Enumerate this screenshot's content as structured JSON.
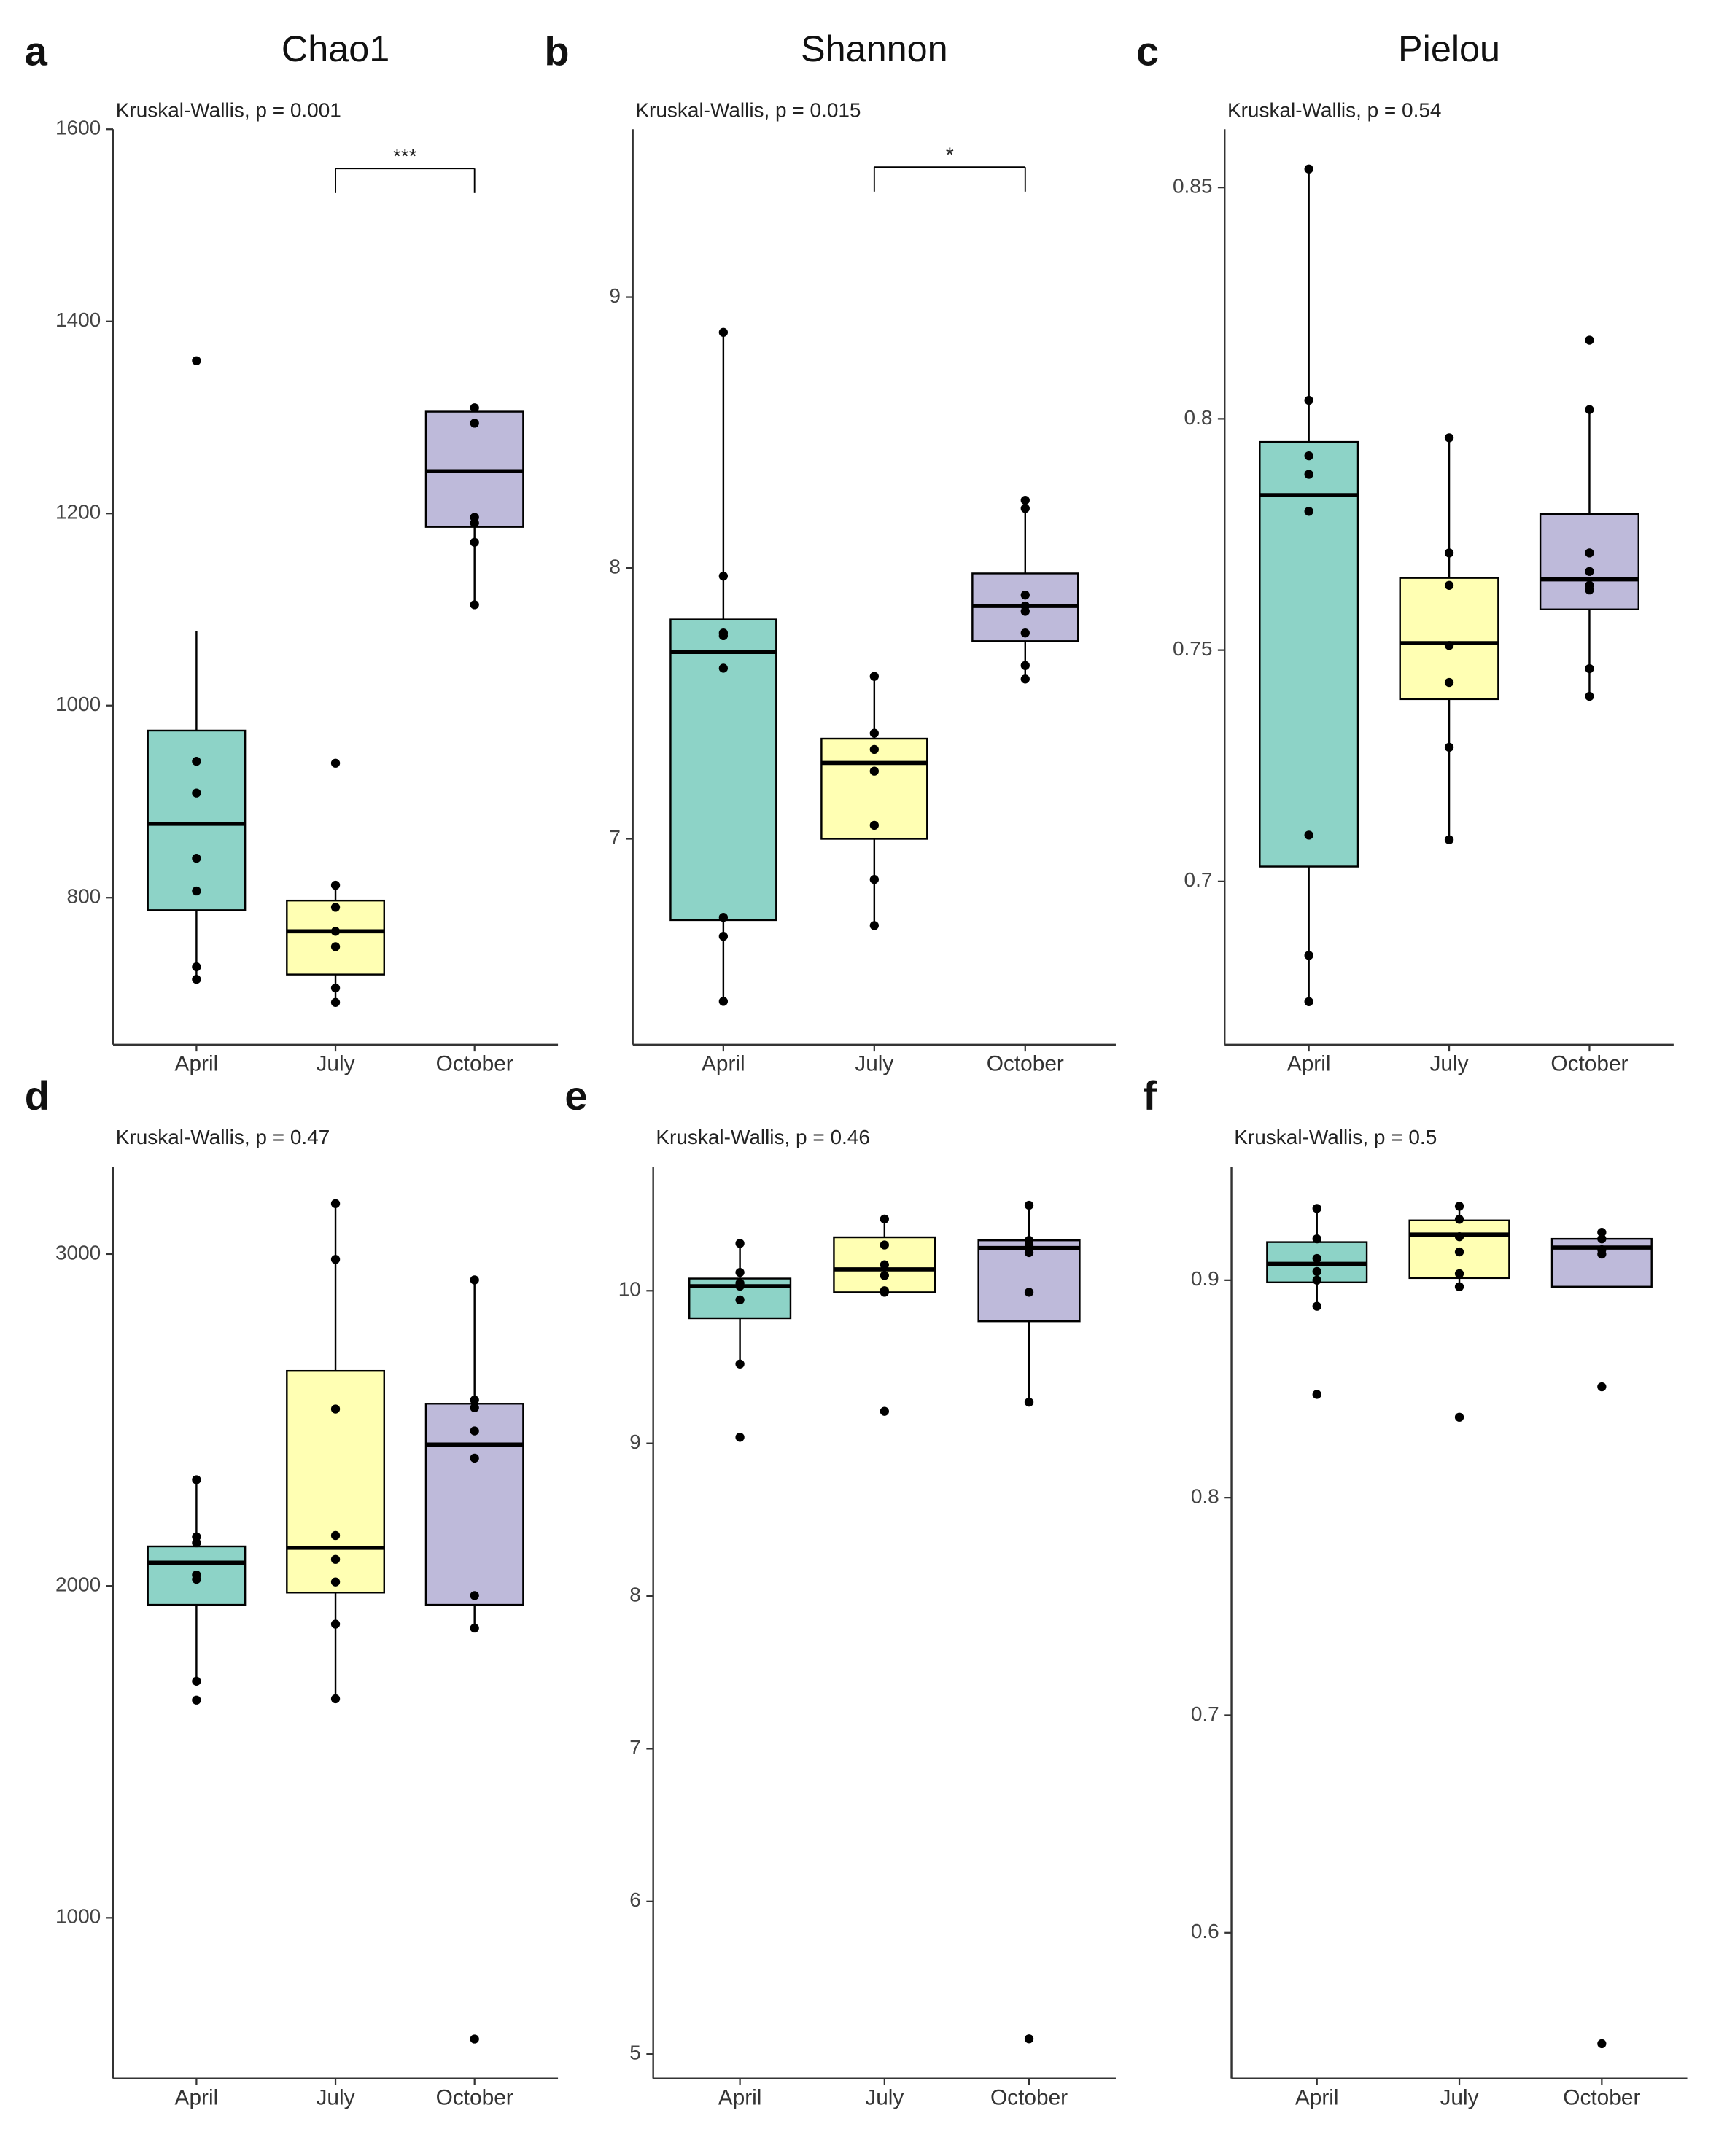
{
  "chart_data": [
    {
      "type": "box",
      "panel_label": "a",
      "title": "Chao1",
      "annotation": "Kruskal-Wallis, p = 0.001",
      "categories": [
        "April",
        "July",
        "October"
      ],
      "colors": [
        "#8dd3c7",
        "#ffffb3",
        "#bebada"
      ],
      "ylim": [
        647,
        1600
      ],
      "yticks": [
        800,
        1000,
        1200,
        1400,
        1600
      ],
      "boxes": [
        {
          "whisker_low": 715,
          "q1": 787,
          "median": 877,
          "q3": 974,
          "whisker_high": 1078,
          "points": [
            1359,
            942,
            909,
            841,
            807,
            728,
            715
          ]
        },
        {
          "whisker_low": 691,
          "q1": 720,
          "median": 765,
          "q3": 797,
          "whisker_high": 813,
          "points": [
            940,
            813,
            790,
            765,
            749,
            706,
            691
          ]
        },
        {
          "whisker_low": 1105,
          "q1": 1186,
          "median": 1244,
          "q3": 1306,
          "whisker_high": 1311,
          "points": [
            1310,
            1294,
            1196,
            1190,
            1170,
            1105
          ]
        }
      ],
      "significance": {
        "between": [
          "July",
          "October"
        ],
        "label": "***",
        "y": 1559
      }
    },
    {
      "type": "box",
      "panel_label": "b",
      "title": "Shannon",
      "annotation": "Kruskal-Wallis, p = 0.015",
      "categories": [
        "April",
        "July",
        "October"
      ],
      "colors": [
        "#8dd3c7",
        "#ffffb3",
        "#bebada"
      ],
      "ylim": [
        6.24,
        9.62
      ],
      "yticks": [
        7,
        8,
        9
      ],
      "boxes": [
        {
          "whisker_low": 6.4,
          "q1": 6.7,
          "median": 7.69,
          "q3": 7.81,
          "whisker_high": 8.87,
          "points": [
            8.87,
            7.97,
            7.76,
            7.75,
            7.63,
            6.71,
            6.64,
            6.4
          ]
        },
        {
          "whisker_low": 6.68,
          "q1": 7.0,
          "median": 7.28,
          "q3": 7.37,
          "whisker_high": 7.6,
          "points": [
            7.6,
            7.39,
            7.33,
            7.25,
            7.05,
            6.85,
            6.68
          ]
        },
        {
          "whisker_low": 7.59,
          "q1": 7.73,
          "median": 7.86,
          "q3": 7.98,
          "whisker_high": 8.26,
          "points": [
            8.25,
            8.22,
            7.9,
            7.86,
            7.84,
            7.76,
            7.64,
            7.59
          ]
        }
      ],
      "significance": {
        "between": [
          "July",
          "October"
        ],
        "label": "*",
        "y": 9.48
      }
    },
    {
      "type": "box",
      "panel_label": "c",
      "title": "Pielou",
      "annotation": "Kruskal-Wallis, p = 0.54",
      "categories": [
        "April",
        "July",
        "October"
      ],
      "colors": [
        "#8dd3c7",
        "#ffffb3",
        "#bebada"
      ],
      "ylim": [
        0.6647,
        0.8626
      ],
      "yticks": [
        0.7,
        0.75,
        0.8,
        0.85
      ],
      "boxes": [
        {
          "whisker_low": 0.6738,
          "q1": 0.7032,
          "median": 0.7835,
          "q3": 0.795,
          "whisker_high": 0.854,
          "points": [
            0.854,
            0.804,
            0.792,
            0.788,
            0.78,
            0.71,
            0.684,
            0.674
          ]
        },
        {
          "whisker_low": 0.7088,
          "q1": 0.7394,
          "median": 0.7515,
          "q3": 0.7656,
          "whisker_high": 0.7959,
          "points": [
            0.7959,
            0.771,
            0.764,
            0.751,
            0.743,
            0.729,
            0.709
          ]
        },
        {
          "whisker_low": 0.7397,
          "q1": 0.7588,
          "median": 0.7653,
          "q3": 0.7794,
          "whisker_high": 0.802,
          "points": [
            0.817,
            0.802,
            0.771,
            0.767,
            0.764,
            0.763,
            0.746,
            0.74
          ]
        }
      ]
    },
    {
      "type": "box",
      "panel_label": "d",
      "annotation": "Kruskal-Wallis, p = 0.47",
      "categories": [
        "April",
        "July",
        "October"
      ],
      "colors": [
        "#8dd3c7",
        "#ffffb3",
        "#bebada"
      ],
      "ylim": [
        516,
        3262
      ],
      "yticks": [
        1000,
        2000,
        3000
      ],
      "boxes": [
        {
          "whisker_low": 1713,
          "q1": 1943,
          "median": 2070,
          "q3": 2119,
          "whisker_high": 2320,
          "points": [
            2320,
            2148,
            2130,
            2033,
            2020,
            1713,
            1656
          ]
        },
        {
          "whisker_low": 1660,
          "q1": 1980,
          "median": 2115,
          "q3": 2648,
          "whisker_high": 3152,
          "points": [
            3152,
            2984,
            2533,
            2152,
            2080,
            2012,
            1885,
            1660
          ]
        },
        {
          "whisker_low": 1873,
          "q1": 1943,
          "median": 2426,
          "q3": 2549,
          "whisker_high": 2922,
          "points": [
            2922,
            2560,
            2537,
            2467,
            2385,
            1971,
            1873,
            635
          ]
        }
      ]
    },
    {
      "type": "box",
      "panel_label": "e",
      "annotation": "Kruskal-Wallis, p = 0.46",
      "categories": [
        "April",
        "July",
        "October"
      ],
      "colors": [
        "#8dd3c7",
        "#ffffb3",
        "#bebada"
      ],
      "ylim": [
        4.84,
        10.81
      ],
      "yticks": [
        5,
        6,
        7,
        8,
        9,
        10
      ],
      "boxes": [
        {
          "whisker_low": 9.52,
          "q1": 9.82,
          "median": 10.03,
          "q3": 10.08,
          "whisker_high": 10.31,
          "points": [
            10.31,
            10.12,
            10.05,
            10.03,
            9.94,
            9.52,
            9.04
          ]
        },
        {
          "whisker_low": 9.99,
          "q1": 9.99,
          "median": 10.14,
          "q3": 10.35,
          "whisker_high": 10.47,
          "points": [
            10.47,
            10.3,
            10.17,
            10.1,
            10.0,
            9.99,
            9.21
          ]
        },
        {
          "whisker_low": 9.27,
          "q1": 9.8,
          "median": 10.28,
          "q3": 10.33,
          "whisker_high": 10.56,
          "points": [
            10.56,
            10.33,
            10.3,
            10.25,
            9.99,
            9.27,
            5.1
          ]
        }
      ]
    },
    {
      "type": "box",
      "panel_label": "f",
      "annotation": "Kruskal-Wallis, p = 0.5",
      "categories": [
        "April",
        "July",
        "October"
      ],
      "colors": [
        "#8dd3c7",
        "#ffffb3",
        "#bebada"
      ],
      "ylim": [
        0.533,
        0.952
      ],
      "yticks": [
        0.6,
        0.7,
        0.8,
        0.9
      ],
      "boxes": [
        {
          "whisker_low": 0.888,
          "q1": 0.899,
          "median": 0.9075,
          "q3": 0.9175,
          "whisker_high": 0.933,
          "points": [
            0.933,
            0.919,
            0.91,
            0.904,
            0.9,
            0.888,
            0.8475
          ]
        },
        {
          "whisker_low": 0.897,
          "q1": 0.901,
          "median": 0.921,
          "q3": 0.9275,
          "whisker_high": 0.934,
          "points": [
            0.934,
            0.928,
            0.92,
            0.913,
            0.903,
            0.897,
            0.837
          ]
        },
        {
          "whisker_low": 0.897,
          "q1": 0.897,
          "median": 0.915,
          "q3": 0.919,
          "whisker_high": 0.922,
          "points": [
            0.922,
            0.919,
            0.914,
            0.912,
            0.851,
            0.549
          ]
        }
      ]
    }
  ]
}
